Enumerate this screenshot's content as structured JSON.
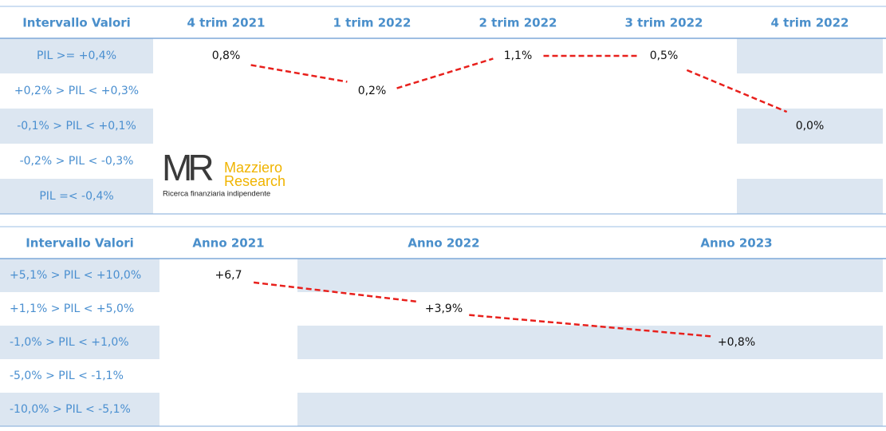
{
  "table1": {
    "header": [
      "Intervallo Valori",
      "4 trim 2021",
      "1 trim 2022",
      "2 trim 2022",
      "3 trim 2022",
      "4 trim 2022"
    ],
    "rows": [
      [
        "PIL >= +0,4%",
        "0,8%",
        null,
        "1,1%",
        "0,5%",
        null
      ],
      [
        "+0,2% > PIL < +0,3%",
        null,
        "0,2%",
        null,
        null,
        null
      ],
      [
        "-0,1% > PIL < +0,1%",
        null,
        null,
        null,
        null,
        "0,0%"
      ],
      [
        "-0,2% > PIL < -0,3%",
        null,
        null,
        null,
        null,
        null
      ],
      [
        "PIL =< -0,4%",
        null,
        null,
        null,
        null,
        null
      ]
    ]
  },
  "logo": {
    "mark": "MR",
    "name1": "Mazziero",
    "name2": "Research",
    "tagline": "Ricerca finanziaria indipendente"
  },
  "table2": {
    "header": [
      "Intervallo Valori",
      "Anno 2021",
      "Anno 2022",
      "Anno 2023"
    ],
    "rows": [
      [
        "+5,1% > PIL < +10,0%",
        "+6,7",
        null,
        null
      ],
      [
        "+1,1% > PIL < +5,0%",
        null,
        "+3,9%",
        null
      ],
      [
        "-1,0% > PIL < +1,0%",
        null,
        null,
        "+0,8%"
      ],
      [
        "-5,0% > PIL < -1,1%",
        null,
        null,
        null
      ],
      [
        "-10,0% > PIL < -5,1%",
        null,
        null,
        null
      ]
    ]
  }
}
